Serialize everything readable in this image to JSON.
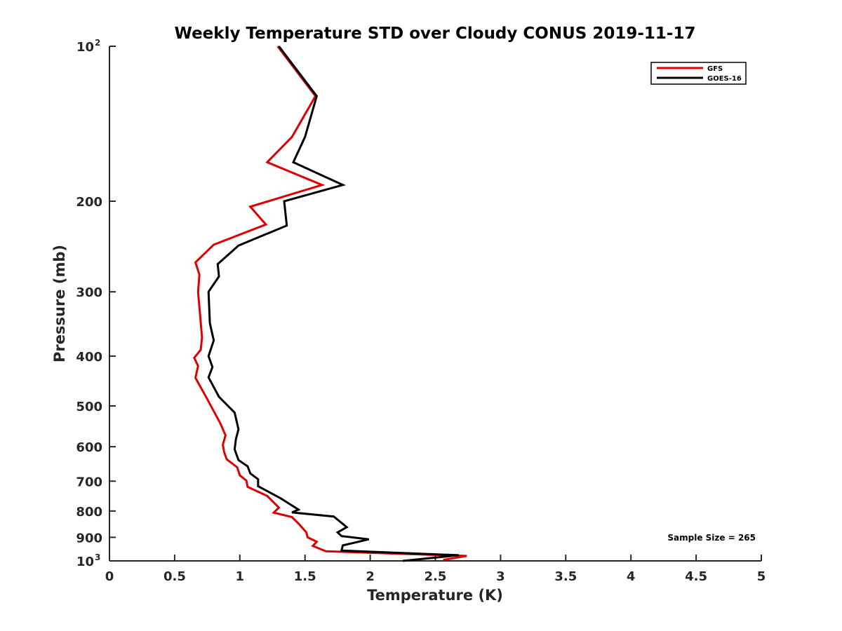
{
  "chart_data": {
    "type": "line",
    "title": "Weekly Temperature STD over Cloudy CONUS 2019-11-17",
    "xlabel": "Temperature (K)",
    "ylabel": "Pressure (mb)",
    "xlim": [
      0,
      5
    ],
    "ylim": [
      100,
      1000
    ],
    "yscale": "log",
    "yreversed": true,
    "grid": false,
    "xticks": [
      0,
      0.5,
      1,
      1.5,
      2,
      2.5,
      3,
      3.5,
      4,
      4.5,
      5
    ],
    "xtick_labels": [
      "0",
      "0.5",
      "1",
      "1.5",
      "2",
      "2.5",
      "3",
      "3.5",
      "4",
      "4.5",
      "5"
    ],
    "yticks": [
      100,
      200,
      300,
      400,
      500,
      600,
      700,
      800,
      900,
      1000
    ],
    "ytick_labels": [
      {
        "base": "10",
        "exp": "2"
      },
      {
        "base": "200",
        "exp": ""
      },
      {
        "base": "300",
        "exp": ""
      },
      {
        "base": "400",
        "exp": ""
      },
      {
        "base": "500",
        "exp": ""
      },
      {
        "base": "600",
        "exp": ""
      },
      {
        "base": "700",
        "exp": ""
      },
      {
        "base": "800",
        "exp": ""
      },
      {
        "base": "900",
        "exp": ""
      },
      {
        "base": "10",
        "exp": "3"
      }
    ],
    "legend": {
      "location": "top-right",
      "entries": [
        "GFS",
        "GOES-16"
      ]
    },
    "annotation": "Sample Size = 265",
    "series": [
      {
        "name": "GFS",
        "color": "#e00000",
        "points": [
          [
            1.29,
            100
          ],
          [
            1.58,
            125
          ],
          [
            1.4,
            150
          ],
          [
            1.21,
            168
          ],
          [
            1.63,
            186
          ],
          [
            1.08,
            205
          ],
          [
            1.2,
            222
          ],
          [
            0.8,
            243
          ],
          [
            0.66,
            263
          ],
          [
            0.69,
            278
          ],
          [
            0.68,
            300
          ],
          [
            0.71,
            368
          ],
          [
            0.7,
            389
          ],
          [
            0.65,
            403
          ],
          [
            0.68,
            418
          ],
          [
            0.66,
            441
          ],
          [
            0.75,
            485
          ],
          [
            0.85,
            540
          ],
          [
            0.89,
            570
          ],
          [
            0.87,
            595
          ],
          [
            0.88,
            615
          ],
          [
            0.9,
            635
          ],
          [
            0.98,
            658
          ],
          [
            1.0,
            682
          ],
          [
            1.05,
            698
          ],
          [
            1.06,
            718
          ],
          [
            1.21,
            748
          ],
          [
            1.3,
            788
          ],
          [
            1.26,
            806
          ],
          [
            1.4,
            822
          ],
          [
            1.45,
            846
          ],
          [
            1.51,
            880
          ],
          [
            1.52,
            900
          ],
          [
            1.59,
            918
          ],
          [
            1.56,
            935
          ],
          [
            1.66,
            958
          ],
          [
            2.74,
            978
          ],
          [
            2.56,
            996
          ]
        ]
      },
      {
        "name": "GOES-16",
        "color": "#000000",
        "points": [
          [
            1.3,
            100
          ],
          [
            1.59,
            125
          ],
          [
            1.5,
            150
          ],
          [
            1.41,
            168
          ],
          [
            1.79,
            186
          ],
          [
            1.34,
            200
          ],
          [
            1.36,
            223
          ],
          [
            0.99,
            244
          ],
          [
            0.83,
            265
          ],
          [
            0.84,
            280
          ],
          [
            0.76,
            300
          ],
          [
            0.77,
            345
          ],
          [
            0.8,
            373
          ],
          [
            0.76,
            400
          ],
          [
            0.79,
            420
          ],
          [
            0.76,
            440
          ],
          [
            0.84,
            480
          ],
          [
            0.96,
            515
          ],
          [
            0.99,
            555
          ],
          [
            0.97,
            580
          ],
          [
            0.96,
            607
          ],
          [
            0.99,
            637
          ],
          [
            1.06,
            655
          ],
          [
            1.08,
            676
          ],
          [
            1.14,
            694
          ],
          [
            1.14,
            716
          ],
          [
            1.31,
            755
          ],
          [
            1.45,
            795
          ],
          [
            1.4,
            805
          ],
          [
            1.72,
            820
          ],
          [
            1.82,
            860
          ],
          [
            1.75,
            880
          ],
          [
            1.78,
            895
          ],
          [
            1.99,
            908
          ],
          [
            1.79,
            933
          ],
          [
            1.78,
            955
          ],
          [
            2.68,
            975
          ],
          [
            2.25,
            1000
          ]
        ]
      }
    ]
  }
}
